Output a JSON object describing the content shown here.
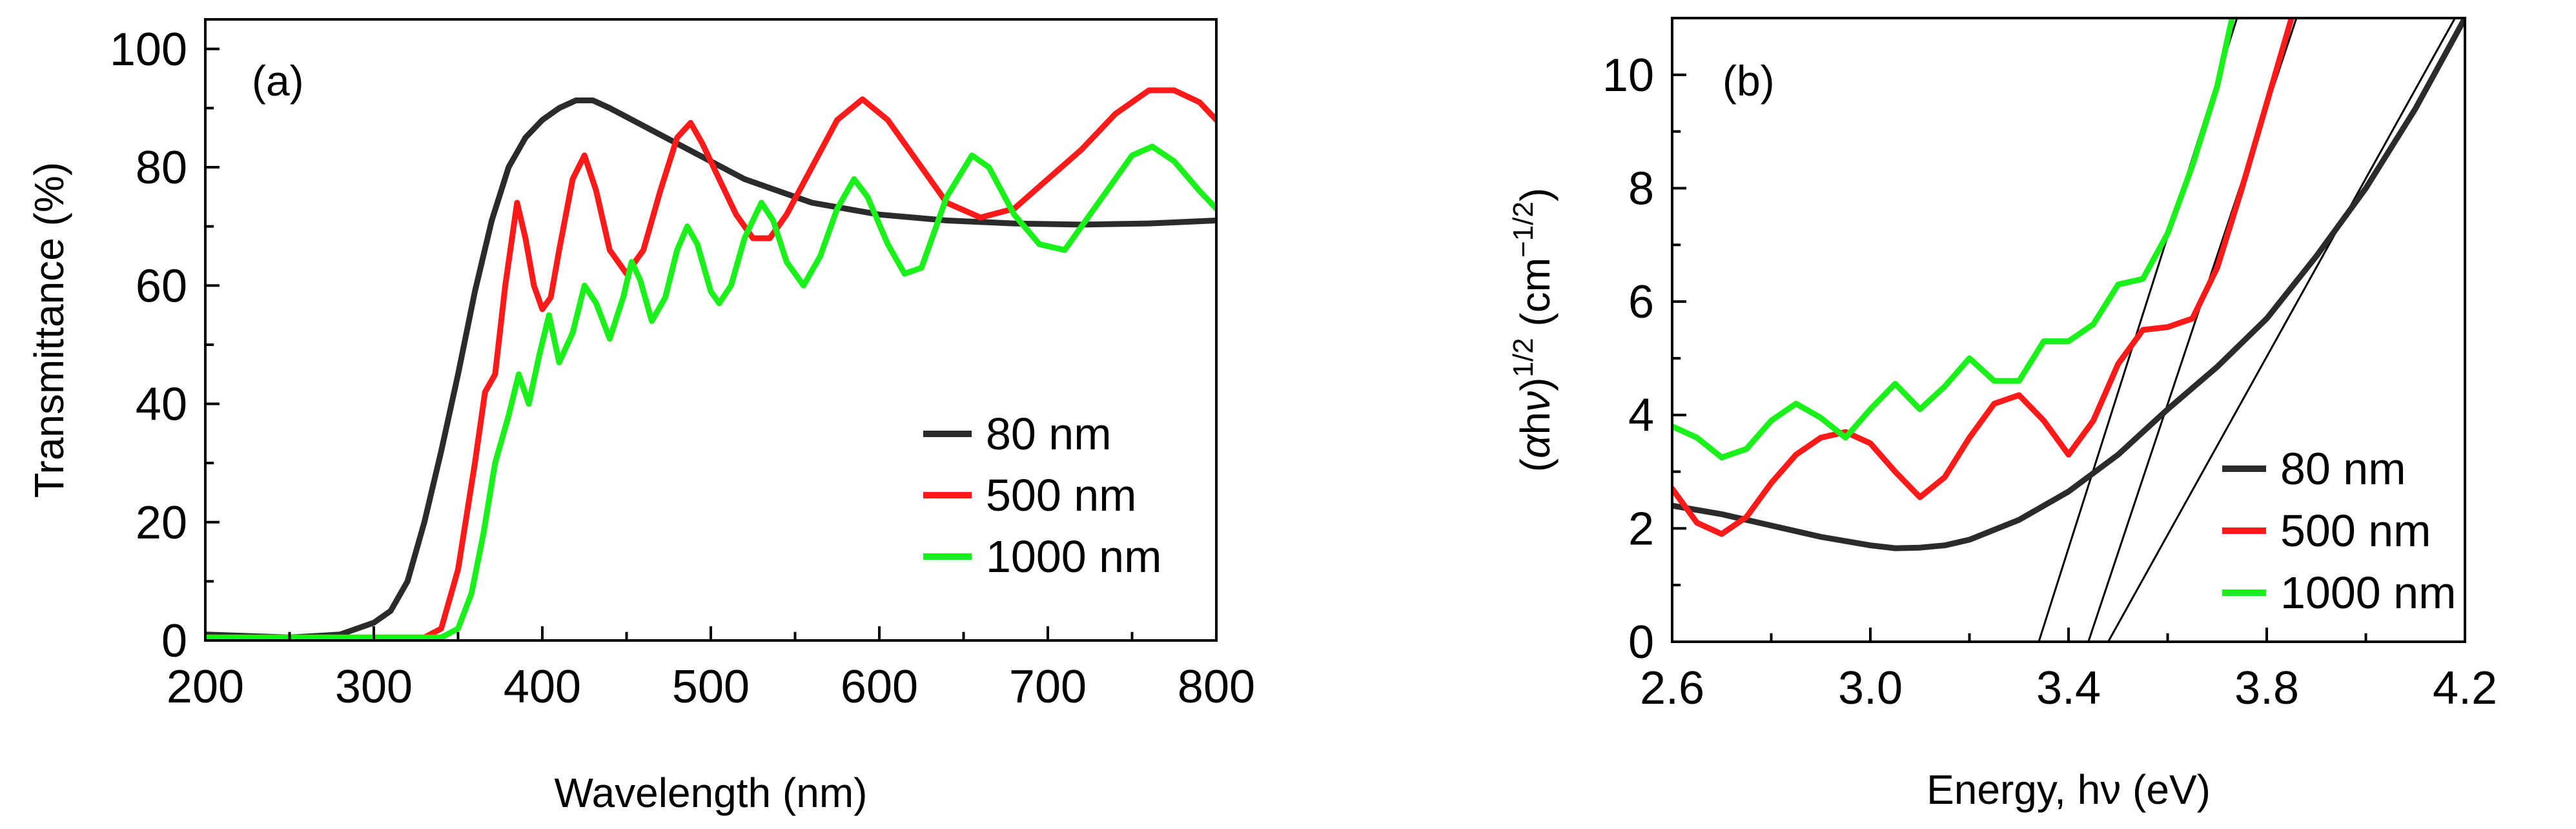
{
  "chart_data": [
    {
      "panel": "(a)",
      "type": "line",
      "title": "",
      "xlabel": "Wavelength (nm)",
      "ylabel": "Transmittance (%)",
      "xlim": [
        200,
        800
      ],
      "ylim": [
        0,
        105
      ],
      "xticks": [
        200,
        300,
        400,
        500,
        600,
        700,
        800
      ],
      "yticks": [
        0,
        20,
        40,
        60,
        80,
        100
      ],
      "grid": false,
      "legend_position": "center-right",
      "series": [
        {
          "name": "80 nm",
          "color": "#2b2b2b",
          "points": [
            [
              200,
              1
            ],
            [
              250,
              0.5
            ],
            [
              280,
              1
            ],
            [
              300,
              3
            ],
            [
              310,
              5
            ],
            [
              320,
              10
            ],
            [
              330,
              20
            ],
            [
              340,
              32
            ],
            [
              350,
              45
            ],
            [
              360,
              59
            ],
            [
              370,
              71
            ],
            [
              380,
              80
            ],
            [
              390,
              85
            ],
            [
              400,
              88
            ],
            [
              410,
              90
            ],
            [
              420,
              91.3
            ],
            [
              430,
              91.3
            ],
            [
              440,
              90
            ],
            [
              460,
              87
            ],
            [
              480,
              84
            ],
            [
              500,
              81
            ],
            [
              520,
              78
            ],
            [
              540,
              76
            ],
            [
              560,
              74
            ],
            [
              580,
              73
            ],
            [
              600,
              72
            ],
            [
              640,
              71
            ],
            [
              680,
              70.5
            ],
            [
              720,
              70.3
            ],
            [
              760,
              70.5
            ],
            [
              800,
              71
            ]
          ]
        },
        {
          "name": "500 nm",
          "color": "#ff1a1a",
          "points": [
            [
              200,
              0.5
            ],
            [
              330,
              0.5
            ],
            [
              340,
              2
            ],
            [
              350,
              12
            ],
            [
              360,
              30
            ],
            [
              366,
              42
            ],
            [
              372,
              45
            ],
            [
              378,
              60
            ],
            [
              385,
              74
            ],
            [
              390,
              68
            ],
            [
              395,
              60
            ],
            [
              400,
              56
            ],
            [
              405,
              58
            ],
            [
              410,
              66
            ],
            [
              418,
              78
            ],
            [
              425,
              82
            ],
            [
              432,
              76
            ],
            [
              440,
              66
            ],
            [
              450,
              62
            ],
            [
              460,
              66
            ],
            [
              470,
              76
            ],
            [
              480,
              85
            ],
            [
              488,
              87.5
            ],
            [
              495,
              84
            ],
            [
              505,
              78
            ],
            [
              515,
              72
            ],
            [
              525,
              68
            ],
            [
              535,
              68
            ],
            [
              545,
              72
            ],
            [
              560,
              80
            ],
            [
              575,
              88
            ],
            [
              590,
              91.5
            ],
            [
              605,
              88
            ],
            [
              620,
              82
            ],
            [
              640,
              74
            ],
            [
              660,
              71.5
            ],
            [
              680,
              73
            ],
            [
              700,
              78
            ],
            [
              720,
              83
            ],
            [
              740,
              89
            ],
            [
              760,
              93
            ],
            [
              775,
              93
            ],
            [
              790,
              91
            ],
            [
              800,
              88
            ]
          ]
        },
        {
          "name": "1000 nm",
          "color": "#1af01a",
          "points": [
            [
              200,
              0.5
            ],
            [
              340,
              0.5
            ],
            [
              350,
              2
            ],
            [
              358,
              8
            ],
            [
              365,
              18
            ],
            [
              372,
              30
            ],
            [
              380,
              38
            ],
            [
              386,
              45
            ],
            [
              392,
              40
            ],
            [
              398,
              48
            ],
            [
              404,
              55
            ],
            [
              410,
              47
            ],
            [
              418,
              52
            ],
            [
              425,
              60
            ],
            [
              432,
              57
            ],
            [
              440,
              51
            ],
            [
              448,
              58
            ],
            [
              453,
              64
            ],
            [
              458,
              61
            ],
            [
              465,
              54
            ],
            [
              473,
              58
            ],
            [
              480,
              66
            ],
            [
              486,
              70
            ],
            [
              492,
              67
            ],
            [
              500,
              59
            ],
            [
              505,
              57
            ],
            [
              512,
              60
            ],
            [
              520,
              68
            ],
            [
              530,
              74
            ],
            [
              537,
              71
            ],
            [
              545,
              64
            ],
            [
              555,
              60
            ],
            [
              565,
              65
            ],
            [
              575,
              73
            ],
            [
              585,
              78
            ],
            [
              593,
              75
            ],
            [
              605,
              67
            ],
            [
              615,
              62
            ],
            [
              625,
              63
            ],
            [
              640,
              75
            ],
            [
              655,
              82
            ],
            [
              665,
              80
            ],
            [
              680,
              72
            ],
            [
              695,
              67
            ],
            [
              710,
              66
            ],
            [
              720,
              70
            ],
            [
              735,
              76
            ],
            [
              750,
              82
            ],
            [
              762,
              83.5
            ],
            [
              775,
              81
            ],
            [
              790,
              76
            ],
            [
              800,
              73
            ]
          ]
        }
      ]
    },
    {
      "panel": "(b)",
      "type": "line",
      "title": "",
      "xlabel": "Energy, hν (eV)",
      "ylabel": "(αhν)1/2 (cm−1/2)",
      "xlim": [
        2.6,
        4.2
      ],
      "ylim": [
        0,
        11
      ],
      "xticks": [
        2.6,
        3.0,
        3.4,
        3.8,
        4.2
      ],
      "yticks": [
        0,
        2,
        4,
        6,
        8,
        10
      ],
      "grid": false,
      "legend_position": "bottom-right",
      "series": [
        {
          "name": "80 nm",
          "color": "#2b2b2b",
          "points": [
            [
              2.6,
              2.4
            ],
            [
              2.7,
              2.25
            ],
            [
              2.8,
              2.05
            ],
            [
              2.9,
              1.85
            ],
            [
              3.0,
              1.7
            ],
            [
              3.05,
              1.65
            ],
            [
              3.1,
              1.66
            ],
            [
              3.15,
              1.7
            ],
            [
              3.2,
              1.8
            ],
            [
              3.3,
              2.15
            ],
            [
              3.4,
              2.65
            ],
            [
              3.5,
              3.3
            ],
            [
              3.6,
              4.1
            ],
            [
              3.7,
              4.85
            ],
            [
              3.8,
              5.7
            ],
            [
              3.9,
              6.8
            ],
            [
              4.0,
              8.0
            ],
            [
              4.1,
              9.4
            ],
            [
              4.2,
              11.0
            ]
          ]
        },
        {
          "name": "500 nm",
          "color": "#ff1a1a",
          "points": [
            [
              2.6,
              2.7
            ],
            [
              2.65,
              2.1
            ],
            [
              2.7,
              1.9
            ],
            [
              2.75,
              2.2
            ],
            [
              2.8,
              2.8
            ],
            [
              2.85,
              3.3
            ],
            [
              2.9,
              3.6
            ],
            [
              2.95,
              3.7
            ],
            [
              3.0,
              3.5
            ],
            [
              3.05,
              3.0
            ],
            [
              3.1,
              2.55
            ],
            [
              3.15,
              2.9
            ],
            [
              3.2,
              3.6
            ],
            [
              3.25,
              4.2
            ],
            [
              3.3,
              4.35
            ],
            [
              3.35,
              3.9
            ],
            [
              3.4,
              3.3
            ],
            [
              3.45,
              3.9
            ],
            [
              3.5,
              4.9
            ],
            [
              3.55,
              5.5
            ],
            [
              3.6,
              5.55
            ],
            [
              3.65,
              5.7
            ],
            [
              3.7,
              6.6
            ],
            [
              3.75,
              8.0
            ],
            [
              3.8,
              9.5
            ],
            [
              3.85,
              11.0
            ]
          ]
        },
        {
          "name": "1000 nm",
          "color": "#1af01a",
          "points": [
            [
              2.6,
              3.8
            ],
            [
              2.65,
              3.6
            ],
            [
              2.7,
              3.25
            ],
            [
              2.75,
              3.4
            ],
            [
              2.8,
              3.9
            ],
            [
              2.85,
              4.2
            ],
            [
              2.9,
              3.95
            ],
            [
              2.95,
              3.6
            ],
            [
              3.0,
              4.1
            ],
            [
              3.05,
              4.55
            ],
            [
              3.1,
              4.1
            ],
            [
              3.15,
              4.5
            ],
            [
              3.2,
              5.0
            ],
            [
              3.25,
              4.6
            ],
            [
              3.3,
              4.6
            ],
            [
              3.35,
              5.3
            ],
            [
              3.4,
              5.3
            ],
            [
              3.45,
              5.6
            ],
            [
              3.5,
              6.3
            ],
            [
              3.55,
              6.4
            ],
            [
              3.6,
              7.2
            ],
            [
              3.65,
              8.4
            ],
            [
              3.7,
              9.8
            ],
            [
              3.73,
              11.0
            ]
          ]
        }
      ],
      "fit_lines": [
        {
          "name": "80 nm fit",
          "points": [
            [
              3.48,
              0
            ],
            [
              4.18,
              11.0
            ]
          ]
        },
        {
          "name": "500 nm fit",
          "points": [
            [
              3.44,
              0
            ],
            [
              3.86,
              11.0
            ]
          ]
        },
        {
          "name": "1000 nm fit",
          "points": [
            [
              3.34,
              0
            ],
            [
              3.74,
              11.0
            ]
          ]
        }
      ]
    }
  ]
}
